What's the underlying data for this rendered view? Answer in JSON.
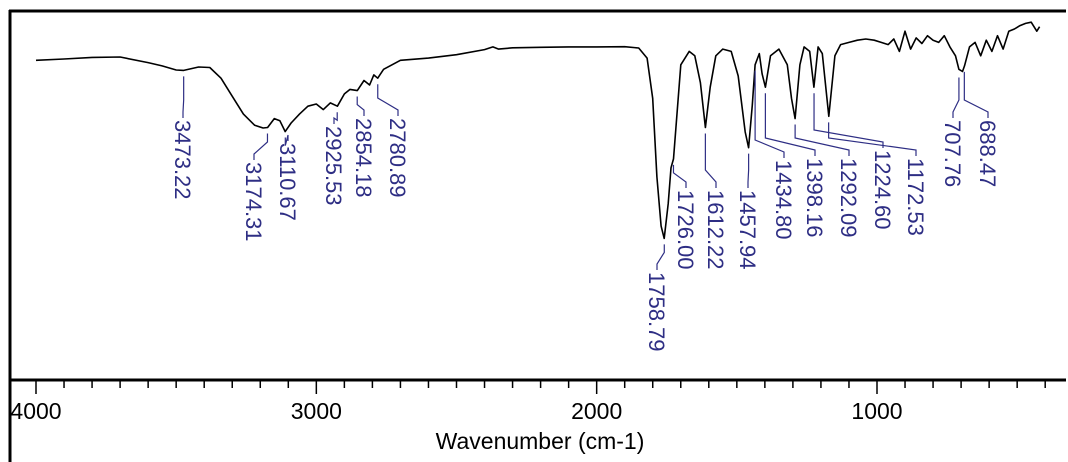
{
  "chart_data": {
    "type": "line",
    "title": "",
    "xlabel": "Wavenumber (cm-1)",
    "ylabel": "",
    "x_reversed": true,
    "xlim": [
      4050,
      400
    ],
    "ylim": [
      0,
      100
    ],
    "x_ticks": [
      4000,
      3000,
      2000,
      1000
    ],
    "x_tick_labels": [
      "4000",
      "3000",
      "2000",
      "1000"
    ],
    "grid": false,
    "label_color": "#2e2e84",
    "line_color": "#000000",
    "series": [
      {
        "x": [
          4000,
          3900,
          3800,
          3700,
          3600,
          3550,
          3500,
          3473,
          3420,
          3380,
          3340,
          3300,
          3260,
          3220,
          3190,
          3174,
          3150,
          3130,
          3111,
          3090,
          3060,
          3030,
          3000,
          2975,
          2950,
          2925,
          2900,
          2880,
          2854,
          2830,
          2810,
          2795,
          2781,
          2760,
          2700,
          2600,
          2500,
          2400,
          2370,
          2350,
          2300,
          2200,
          2100,
          2000,
          1900,
          1850,
          1820,
          1800,
          1785,
          1770,
          1759,
          1745,
          1735,
          1726,
          1700,
          1670,
          1650,
          1630,
          1612,
          1595,
          1575,
          1550,
          1520,
          1495,
          1470,
          1458,
          1445,
          1435,
          1420,
          1410,
          1398,
          1380,
          1350,
          1320,
          1305,
          1292,
          1275,
          1260,
          1240,
          1225,
          1210,
          1195,
          1172,
          1150,
          1130,
          1100,
          1070,
          1040,
          1010,
          985,
          960,
          940,
          920,
          900,
          880,
          860,
          840,
          820,
          800,
          780,
          760,
          740,
          720,
          708,
          695,
          688,
          670,
          650,
          630,
          610,
          590,
          570,
          550,
          530,
          510,
          490,
          470,
          450,
          430,
          420
        ],
        "y": [
          82.0,
          82.6,
          83.3,
          83.5,
          81.0,
          79.5,
          77.7,
          77.5,
          79.0,
          78.8,
          74.0,
          66.0,
          58.0,
          53.0,
          51.8,
          52.0,
          56.0,
          55.0,
          50.2,
          54.0,
          58.0,
          61.5,
          62.5,
          60.0,
          63.0,
          61.5,
          67.0,
          69.0,
          68.5,
          73.0,
          71.0,
          75.5,
          74.0,
          78.0,
          82.0,
          83.0,
          84.5,
          86.8,
          88.0,
          87.0,
          87.6,
          87.8,
          88.0,
          88.0,
          88.1,
          87.5,
          83.0,
          65.0,
          30.0,
          8.0,
          2.5,
          18.0,
          34.0,
          38.0,
          80.0,
          86.0,
          84.0,
          72.0,
          52.0,
          70.0,
          84.0,
          87.0,
          86.0,
          75.0,
          50.0,
          43.0,
          62.0,
          80.0,
          85.0,
          76.0,
          70.0,
          84.0,
          87.0,
          80.0,
          65.0,
          56.0,
          80.0,
          88.0,
          86.0,
          70.0,
          88.0,
          85.0,
          57.0,
          84.0,
          89.0,
          90.0,
          91.0,
          91.5,
          91.0,
          90.0,
          89.0,
          91.5,
          86.0,
          95.0,
          87.0,
          92.0,
          89.5,
          93.0,
          91.0,
          90.0,
          93.0,
          88.0,
          84.0,
          78.0,
          77.0,
          79.5,
          88.0,
          90.0,
          84.0,
          91.0,
          86.0,
          93.0,
          87.0,
          95.0,
          96.0,
          97.5,
          98.5,
          99.0,
          95.0,
          97.0
        ]
      }
    ],
    "peak_labels": [
      {
        "x": 3473.22,
        "y": 77.5,
        "text": "3473.22"
      },
      {
        "x": 3174.31,
        "y": 52.0,
        "text": "3174.31"
      },
      {
        "x": 3110.67,
        "y": 50.2,
        "text": "3110.67"
      },
      {
        "x": 2925.53,
        "y": 61.5,
        "text": "2925.53"
      },
      {
        "x": 2854.18,
        "y": 68.5,
        "text": "2854.18"
      },
      {
        "x": 2780.89,
        "y": 74.0,
        "text": "2780.89"
      },
      {
        "x": 1758.79,
        "y": 2.5,
        "text": "1758.79"
      },
      {
        "x": 1726.0,
        "y": 38.0,
        "text": "1726.00"
      },
      {
        "x": 1612.22,
        "y": 52.0,
        "text": "1612.22"
      },
      {
        "x": 1457.94,
        "y": 43.0,
        "text": "1457.94"
      },
      {
        "x": 1434.8,
        "y": 80.0,
        "text": "1434.80"
      },
      {
        "x": 1398.16,
        "y": 70.0,
        "text": "1398.16"
      },
      {
        "x": 1292.09,
        "y": 56.0,
        "text": "1292.09"
      },
      {
        "x": 1224.6,
        "y": 70.0,
        "text": "1224.60"
      },
      {
        "x": 1172.53,
        "y": 57.0,
        "text": "1172.53"
      },
      {
        "x": 707.76,
        "y": 77.0,
        "text": "707.76"
      },
      {
        "x": 688.47,
        "y": 79.5,
        "text": "688.47"
      }
    ]
  }
}
